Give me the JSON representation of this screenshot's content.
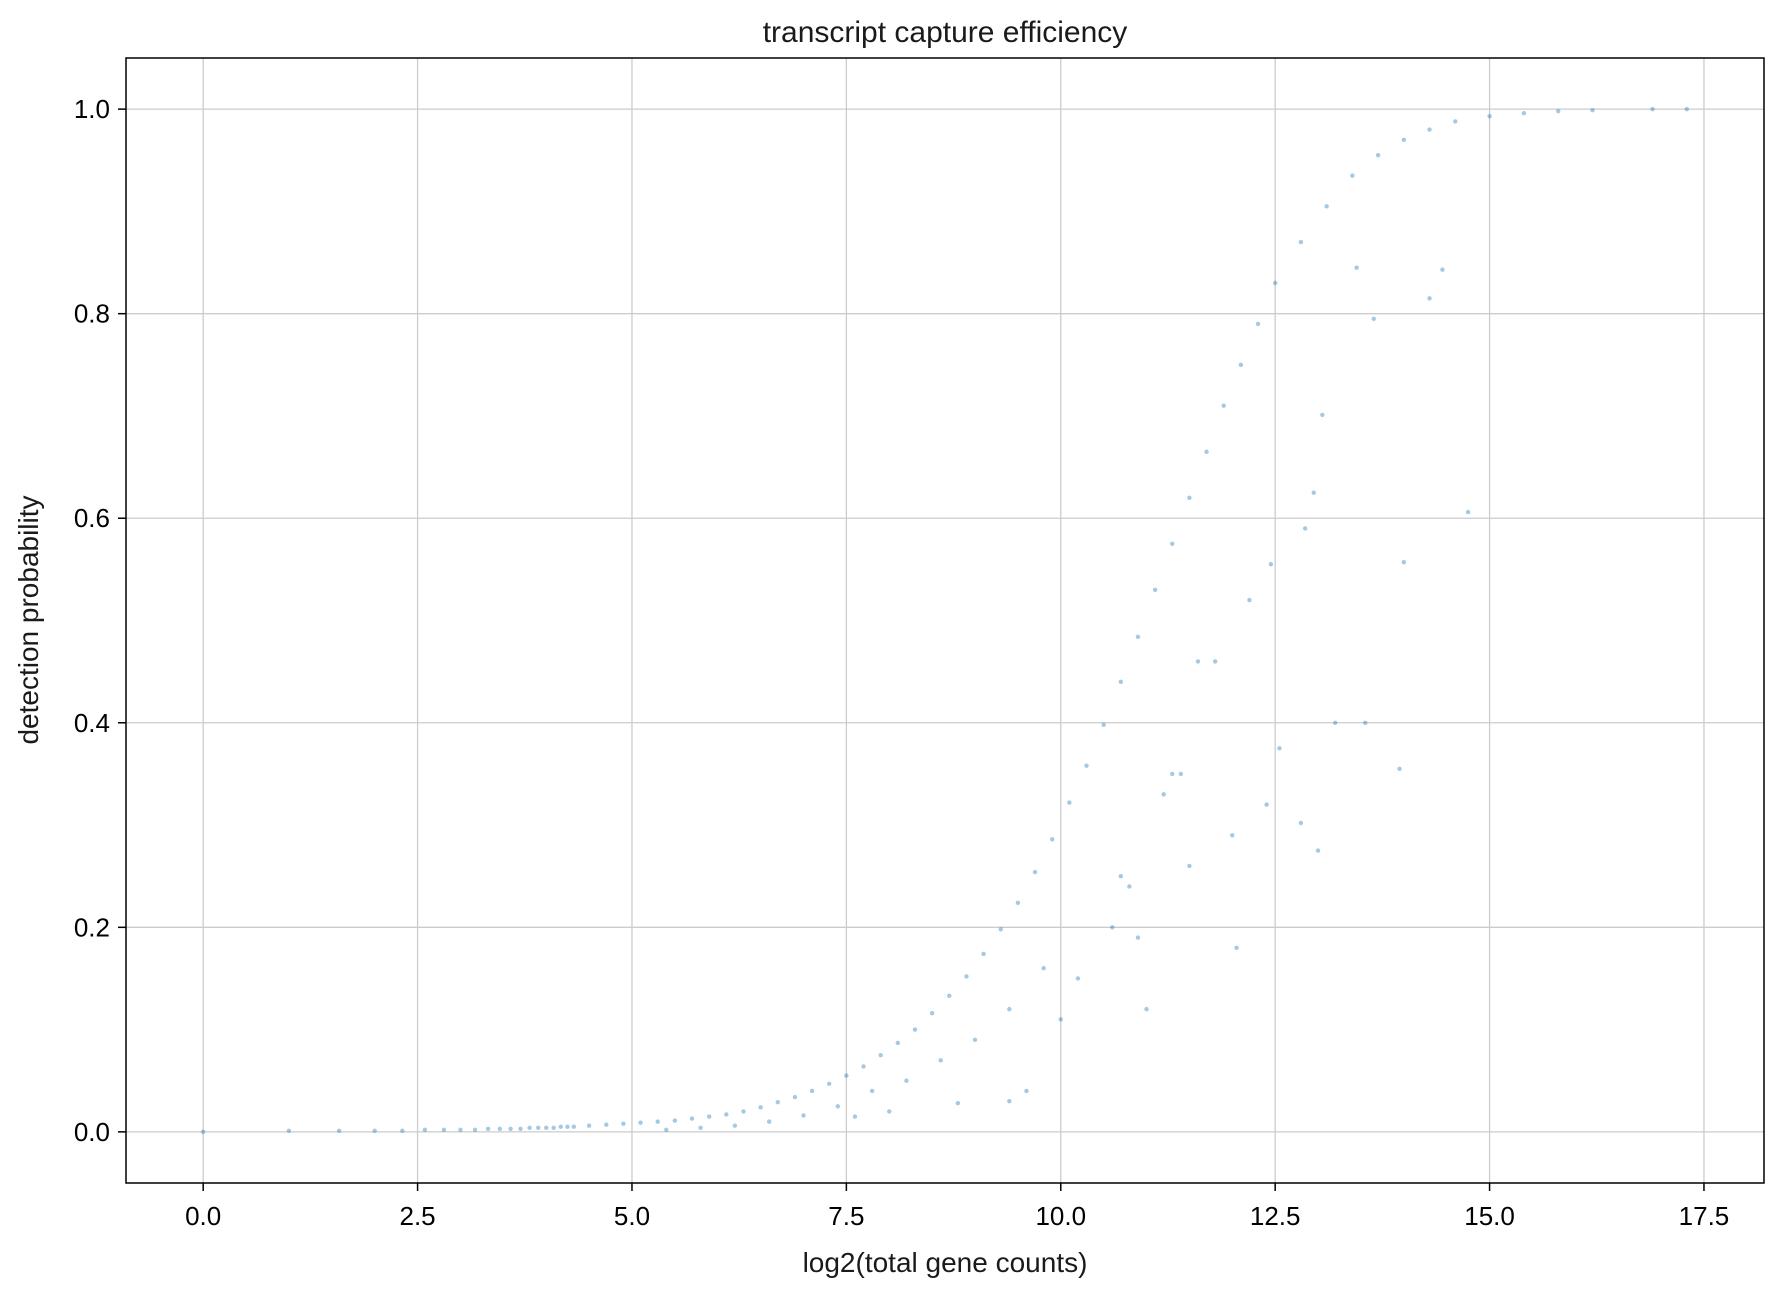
{
  "chart_data": {
    "type": "scatter",
    "title": "transcript capture efficiency",
    "xlabel": "log2(total gene counts)",
    "ylabel": "detection probability",
    "xlim": [
      -0.9,
      18.2
    ],
    "ylim": [
      -0.05,
      1.05
    ],
    "xticks": [
      "0.0",
      "2.5",
      "5.0",
      "7.5",
      "10.0",
      "12.5",
      "15.0",
      "17.5"
    ],
    "yticks": [
      "0.0",
      "0.2",
      "0.4",
      "0.6",
      "0.8",
      "1.0"
    ],
    "grid": true,
    "point_color": "#1f77b4",
    "point_alpha": 0.4,
    "series": [
      {
        "points": [
          [
            0.0,
            0.0
          ],
          [
            1.0,
            0.001
          ],
          [
            1.585,
            0.001
          ],
          [
            2.0,
            0.001
          ],
          [
            2.322,
            0.001
          ],
          [
            2.585,
            0.002
          ],
          [
            2.807,
            0.002
          ],
          [
            3.0,
            0.002
          ],
          [
            3.17,
            0.002
          ],
          [
            3.322,
            0.003
          ],
          [
            3.459,
            0.003
          ],
          [
            3.585,
            0.003
          ],
          [
            3.7,
            0.003
          ],
          [
            3.807,
            0.004
          ],
          [
            3.907,
            0.004
          ],
          [
            4.0,
            0.004
          ],
          [
            4.087,
            0.004
          ],
          [
            4.17,
            0.005
          ],
          [
            4.248,
            0.005
          ],
          [
            4.322,
            0.005
          ],
          [
            4.5,
            0.006
          ],
          [
            4.7,
            0.007
          ],
          [
            4.9,
            0.008
          ],
          [
            5.1,
            0.009
          ],
          [
            5.3,
            0.01
          ],
          [
            5.5,
            0.011
          ],
          [
            5.7,
            0.013
          ],
          [
            5.9,
            0.015
          ],
          [
            6.1,
            0.017
          ],
          [
            6.3,
            0.02
          ],
          [
            6.5,
            0.024
          ],
          [
            6.7,
            0.029
          ],
          [
            6.9,
            0.034
          ],
          [
            7.1,
            0.04
          ],
          [
            7.3,
            0.047
          ],
          [
            7.5,
            0.055
          ],
          [
            7.7,
            0.064
          ],
          [
            7.9,
            0.075
          ],
          [
            8.1,
            0.087
          ],
          [
            8.3,
            0.1
          ],
          [
            8.5,
            0.116
          ],
          [
            8.7,
            0.133
          ],
          [
            8.9,
            0.152
          ],
          [
            9.1,
            0.174
          ],
          [
            9.3,
            0.198
          ],
          [
            9.5,
            0.224
          ],
          [
            9.7,
            0.254
          ],
          [
            9.9,
            0.286
          ],
          [
            10.1,
            0.322
          ],
          [
            10.3,
            0.358
          ],
          [
            10.5,
            0.398
          ],
          [
            10.7,
            0.44
          ],
          [
            10.9,
            0.484
          ],
          [
            11.1,
            0.53
          ],
          [
            11.3,
            0.575
          ],
          [
            11.5,
            0.62
          ],
          [
            11.7,
            0.665
          ],
          [
            11.9,
            0.71
          ],
          [
            12.1,
            0.75
          ],
          [
            12.3,
            0.79
          ],
          [
            12.5,
            0.83
          ],
          [
            12.8,
            0.87
          ],
          [
            13.1,
            0.905
          ],
          [
            13.4,
            0.935
          ],
          [
            13.7,
            0.955
          ],
          [
            14.0,
            0.97
          ],
          [
            14.3,
            0.98
          ],
          [
            14.6,
            0.988
          ],
          [
            15.0,
            0.993
          ],
          [
            15.4,
            0.996
          ],
          [
            15.8,
            0.998
          ],
          [
            16.2,
            0.999
          ],
          [
            16.9,
            1.0
          ],
          [
            17.3,
            1.0
          ],
          [
            5.4,
            0.002
          ],
          [
            5.8,
            0.004
          ],
          [
            6.2,
            0.006
          ],
          [
            6.6,
            0.01
          ],
          [
            7.0,
            0.016
          ],
          [
            7.4,
            0.025
          ],
          [
            7.6,
            0.015
          ],
          [
            7.8,
            0.04
          ],
          [
            8.2,
            0.05
          ],
          [
            8.6,
            0.07
          ],
          [
            9.0,
            0.09
          ],
          [
            9.4,
            0.12
          ],
          [
            9.8,
            0.16
          ],
          [
            10.0,
            0.11
          ],
          [
            10.2,
            0.15
          ],
          [
            10.6,
            0.2
          ],
          [
            10.8,
            0.24
          ],
          [
            11.0,
            0.12
          ],
          [
            11.2,
            0.33
          ],
          [
            11.4,
            0.35
          ],
          [
            11.6,
            0.46
          ],
          [
            12.0,
            0.29
          ],
          [
            12.05,
            0.18
          ],
          [
            12.4,
            0.32
          ],
          [
            12.45,
            0.555
          ],
          [
            12.55,
            0.375
          ],
          [
            12.8,
            0.302
          ],
          [
            13.0,
            0.275
          ],
          [
            13.2,
            0.4
          ],
          [
            13.55,
            0.4
          ],
          [
            13.95,
            0.355
          ],
          [
            14.0,
            0.557
          ],
          [
            12.85,
            0.59
          ],
          [
            12.95,
            0.625
          ],
          [
            13.05,
            0.701
          ],
          [
            14.3,
            0.815
          ],
          [
            14.45,
            0.843
          ],
          [
            14.75,
            0.606
          ],
          [
            13.65,
            0.795
          ],
          [
            13.45,
            0.845
          ],
          [
            8.8,
            0.028
          ],
          [
            9.4,
            0.03
          ],
          [
            9.6,
            0.04
          ],
          [
            10.7,
            0.25
          ],
          [
            11.3,
            0.35
          ],
          [
            11.8,
            0.46
          ],
          [
            12.2,
            0.52
          ],
          [
            11.5,
            0.26
          ],
          [
            10.9,
            0.19
          ],
          [
            8.0,
            0.02
          ]
        ]
      }
    ]
  }
}
